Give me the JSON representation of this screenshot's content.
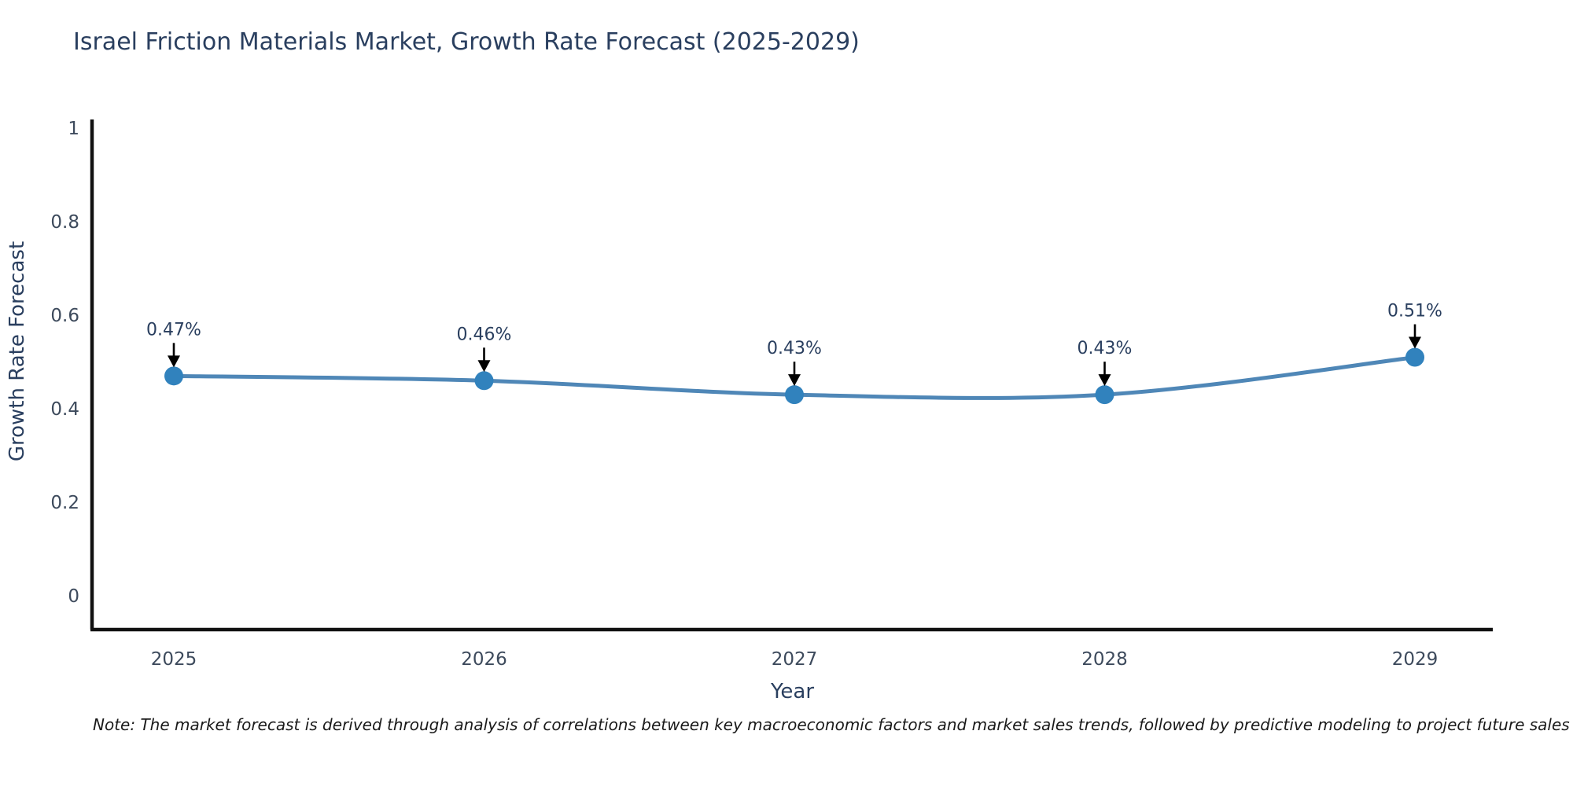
{
  "title": {
    "text": "Israel Friction Materials Market, Growth Rate Forecast (2025-2029)",
    "color": "#2a3f5f"
  },
  "note": {
    "text": "Note: The market forecast is derived through analysis of correlations between key macroeconomic factors and market sales trends, followed by predictive modeling to project future sales"
  },
  "chart_data": {
    "type": "line",
    "title": "Israel Friction Materials Market, Growth Rate Forecast (2025-2029)",
    "x": [
      2025,
      2026,
      2027,
      2028,
      2029
    ],
    "values": [
      0.47,
      0.46,
      0.43,
      0.43,
      0.51
    ],
    "point_labels": [
      "0.47%",
      "0.46%",
      "0.43%",
      "0.43%",
      "0.51%"
    ],
    "xtick_labels": [
      "2025",
      "2026",
      "2027",
      "2028",
      "2029"
    ],
    "yticks": [
      0,
      0.2,
      0.4,
      0.6,
      0.8,
      1
    ],
    "ytick_labels": [
      "0",
      "0.2",
      "0.4",
      "0.6",
      "0.8",
      "1"
    ],
    "xlabel": "Year",
    "ylabel": "Growth Rate Forecast",
    "ylim": [
      0,
      1
    ],
    "line_shape": "spline",
    "grid": false,
    "legend": false,
    "colors": {
      "line": "#4f87b7",
      "marker": "#3182bd",
      "axis": "#111111",
      "tick_text": "#3d4a5c",
      "axis_title_text": "#2a3f5f",
      "annotation_text": "#2a3f5f",
      "annotation_arrow": "#000000"
    }
  }
}
